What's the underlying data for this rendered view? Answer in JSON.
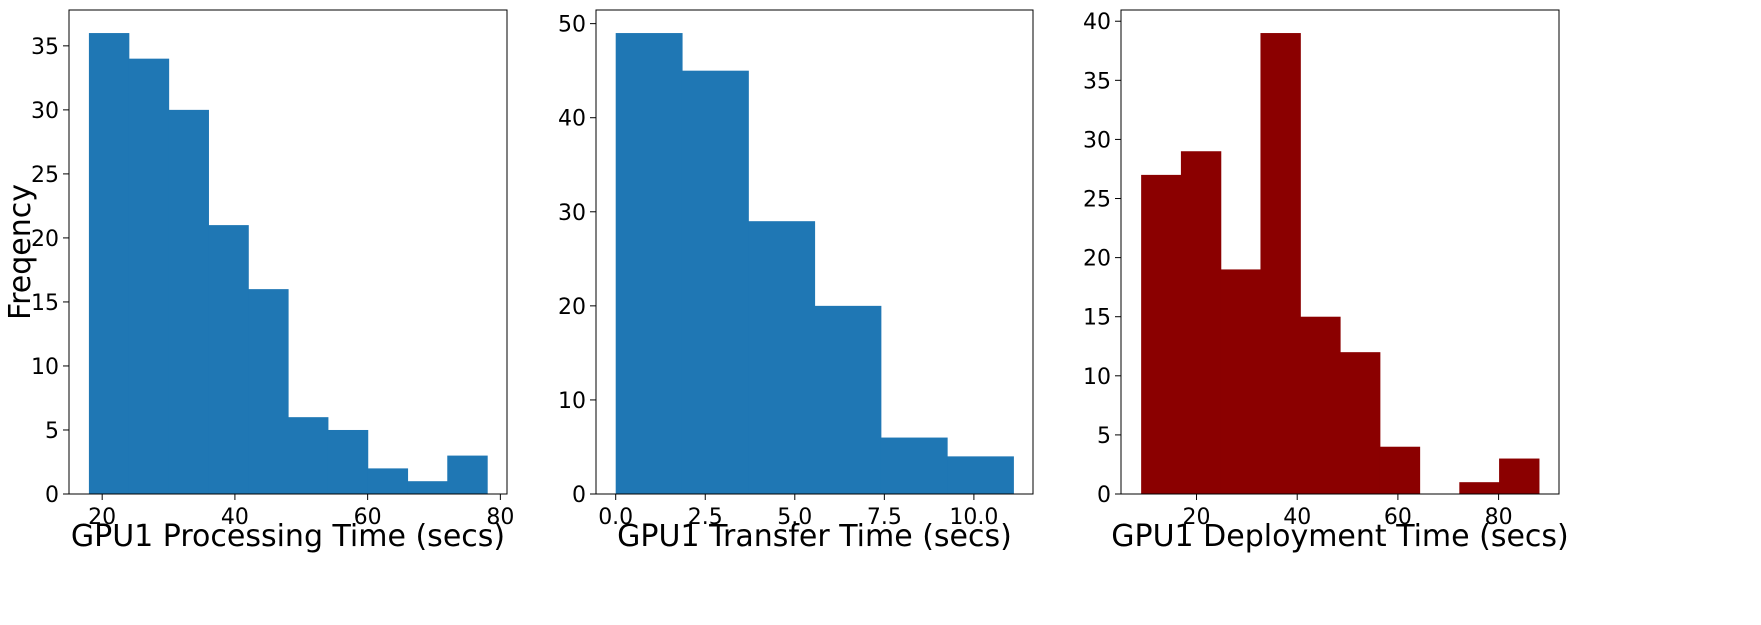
{
  "chart_data": [
    {
      "type": "bar",
      "histogram": true,
      "color": "#1f77b4",
      "xlabel": "GPU1 Processing Time (secs)",
      "ylabel": "Freqency",
      "bin_edges": [
        18.0,
        24.0,
        30.0,
        36.0,
        42.0,
        48.0,
        54.0,
        60.0,
        66.0,
        72.0,
        78.0
      ],
      "values": [
        36,
        34,
        30,
        21,
        16,
        6,
        5,
        2,
        1,
        3
      ],
      "xlim": [
        15.0,
        81.0
      ],
      "ylim": [
        0,
        37.8
      ],
      "xticks": [
        20,
        40,
        60,
        80
      ],
      "yticks": [
        0,
        5,
        10,
        15,
        20,
        25,
        30,
        35
      ]
    },
    {
      "type": "bar",
      "histogram": true,
      "color": "#1f77b4",
      "xlabel": "GPU1 Transfer Time (secs)",
      "ylabel": "",
      "bin_edges": [
        0.0,
        1.85,
        3.7,
        5.55,
        7.4,
        9.25,
        11.1
      ],
      "values": [
        49,
        45,
        29,
        20,
        6,
        4
      ],
      "xlim": [
        -0.55,
        11.65
      ],
      "ylim": [
        0,
        51.45
      ],
      "xticks": [
        0.0,
        2.5,
        5.0,
        7.5,
        10.0
      ],
      "yticks": [
        0,
        10,
        20,
        30,
        40,
        50
      ]
    },
    {
      "type": "bar",
      "histogram": true,
      "color": "#8b0000",
      "xlabel": "GPU1 Deployment Time (secs)",
      "ylabel": "",
      "bin_edges": [
        9.0,
        16.9,
        24.8,
        32.7,
        40.6,
        48.5,
        56.4,
        64.3,
        72.2,
        80.1,
        88.0
      ],
      "values": [
        27,
        29,
        19,
        39,
        15,
        12,
        4,
        0,
        1,
        3
      ],
      "xlim": [
        5.0,
        92.0
      ],
      "ylim": [
        0,
        40.95
      ],
      "xticks": [
        20,
        40,
        60,
        80
      ],
      "yticks": [
        0,
        5,
        10,
        15,
        20,
        25,
        30,
        35,
        40
      ]
    }
  ]
}
